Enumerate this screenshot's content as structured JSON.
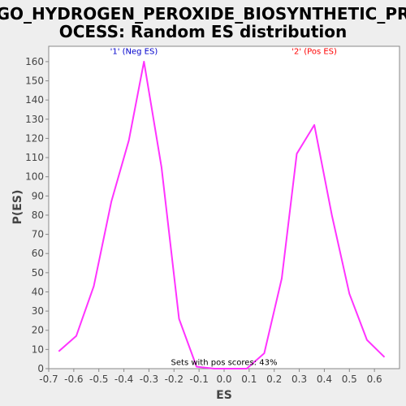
{
  "chart_data": {
    "type": "line",
    "title_lines": [
      "GO_HYDROGEN_PEROXIDE_BIOSYNTHETIC_PR",
      "OCESS: Random ES distribution"
    ],
    "xlabel": "ES",
    "ylabel": "P(ES)",
    "xlim": [
      -0.7,
      0.7
    ],
    "ylim": [
      0,
      168
    ],
    "x_ticks": [
      -0.7,
      -0.6,
      -0.5,
      -0.4,
      -0.3,
      -0.2,
      -0.1,
      0.0,
      0.1,
      0.2,
      0.3,
      0.4,
      0.5,
      0.6
    ],
    "x_tick_labels": [
      "-0.7",
      "-0.6",
      "-0.5",
      "-0.4",
      "-0.3",
      "-0.2",
      "-0.1",
      "0.0",
      "0.1",
      "0.2",
      "0.3",
      "0.4",
      "0.5",
      "0.6"
    ],
    "y_ticks": [
      0,
      10,
      20,
      30,
      40,
      50,
      60,
      70,
      80,
      90,
      100,
      110,
      120,
      130,
      140,
      150,
      160
    ],
    "grid": false,
    "series": [
      {
        "color": "#ff33ff",
        "x": [
          -0.66,
          -0.59,
          -0.52,
          -0.45,
          -0.38,
          -0.32,
          -0.25,
          -0.18,
          -0.11,
          -0.04,
          0.02,
          0.09,
          0.16,
          0.23,
          0.29,
          0.36,
          0.43,
          0.5,
          0.57,
          0.64
        ],
        "y": [
          9,
          17,
          43,
          87,
          119,
          160,
          105,
          26,
          1,
          0,
          0,
          0,
          8,
          47,
          112,
          127,
          80,
          39,
          15,
          6
        ]
      }
    ],
    "annotations": [
      {
        "text": "'1' (Neg ES)",
        "x": -0.36,
        "y": 164,
        "color": "#0000cc"
      },
      {
        "text": "'2' (Pos ES)",
        "x": 0.36,
        "y": 164,
        "color": "#ff0000"
      },
      {
        "text": "Sets with pos scores: 43%",
        "x": 0.0,
        "y": 2,
        "color": "#000000"
      }
    ]
  }
}
